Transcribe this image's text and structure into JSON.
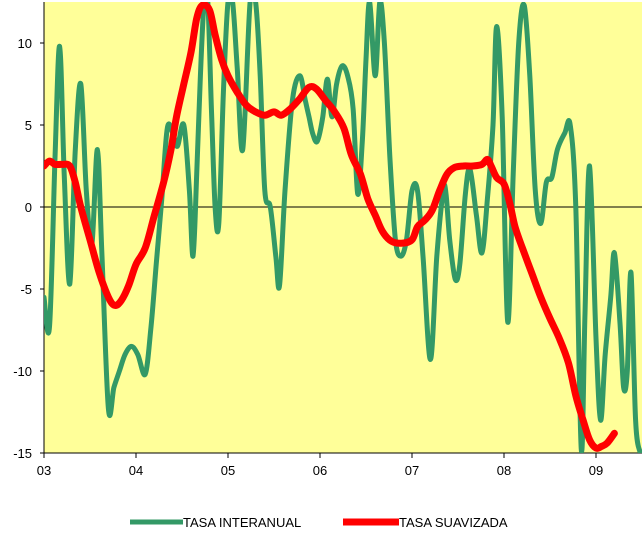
{
  "chart_data": {
    "type": "line",
    "title": "",
    "xlabel": "",
    "ylabel": "",
    "xlim": [
      2003.0,
      2009.5
    ],
    "ylim": [
      -15,
      12.5
    ],
    "x_tick_values": [
      2003,
      2004,
      2005,
      2006,
      2007,
      2008,
      2009
    ],
    "x_tick_labels": [
      "03",
      "04",
      "05",
      "06",
      "07",
      "08",
      "09"
    ],
    "y_tick_values": [
      -15,
      -10,
      -5,
      0,
      5,
      10
    ],
    "y_tick_labels": [
      "-15",
      "-10",
      "-5",
      "0",
      "5",
      "10"
    ],
    "plot_background": "#ffff99",
    "zero_line": true,
    "grid": false,
    "legend_position": "bottom",
    "series": [
      {
        "name": "TASA INTERANUAL",
        "color": "#339966",
        "points": [
          [
            2003.0,
            -5.5
          ],
          [
            2003.06,
            -7.3
          ],
          [
            2003.12,
            3.0
          ],
          [
            2003.17,
            9.8
          ],
          [
            2003.22,
            2.0
          ],
          [
            2003.28,
            -4.7
          ],
          [
            2003.34,
            3.5
          ],
          [
            2003.4,
            7.5
          ],
          [
            2003.46,
            1.0
          ],
          [
            2003.52,
            -2.3
          ],
          [
            2003.58,
            3.5
          ],
          [
            2003.63,
            -3.0
          ],
          [
            2003.7,
            -12.3
          ],
          [
            2003.76,
            -11.0
          ],
          [
            2003.82,
            -10.0
          ],
          [
            2003.88,
            -9.0
          ],
          [
            2003.95,
            -8.5
          ],
          [
            2004.02,
            -9.0
          ],
          [
            2004.1,
            -10.2
          ],
          [
            2004.16,
            -7.5
          ],
          [
            2004.22,
            -3.5
          ],
          [
            2004.28,
            0.5
          ],
          [
            2004.34,
            4.8
          ],
          [
            2004.4,
            4.5
          ],
          [
            2004.45,
            3.7
          ],
          [
            2004.52,
            5.0
          ],
          [
            2004.58,
            1.0
          ],
          [
            2004.62,
            -3.0
          ],
          [
            2004.66,
            2.0
          ],
          [
            2004.7,
            8.0
          ],
          [
            2004.74,
            12.5
          ],
          [
            2004.78,
            12.5
          ],
          [
            2004.82,
            6.0
          ],
          [
            2004.86,
            0.0
          ],
          [
            2004.9,
            -1.0
          ],
          [
            2004.95,
            7.0
          ],
          [
            2005.0,
            12.5
          ],
          [
            2005.05,
            12.5
          ],
          [
            2005.1,
            8.5
          ],
          [
            2005.16,
            3.5
          ],
          [
            2005.24,
            12.5
          ],
          [
            2005.3,
            12.5
          ],
          [
            2005.35,
            8.0
          ],
          [
            2005.4,
            1.0
          ],
          [
            2005.46,
            0.0
          ],
          [
            2005.52,
            -3.0
          ],
          [
            2005.56,
            -4.8
          ],
          [
            2005.62,
            1.0
          ],
          [
            2005.7,
            6.5
          ],
          [
            2005.78,
            8.0
          ],
          [
            2005.84,
            6.5
          ],
          [
            2005.88,
            5.5
          ],
          [
            2005.92,
            4.5
          ],
          [
            2005.97,
            4.0
          ],
          [
            2006.03,
            5.5
          ],
          [
            2006.08,
            7.8
          ],
          [
            2006.13,
            5.5
          ],
          [
            2006.18,
            7.5
          ],
          [
            2006.24,
            8.6
          ],
          [
            2006.3,
            8.0
          ],
          [
            2006.36,
            6.0
          ],
          [
            2006.41,
            0.8
          ],
          [
            2006.46,
            4.0
          ],
          [
            2006.5,
            9.0
          ],
          [
            2006.54,
            12.5
          ],
          [
            2006.6,
            8.0
          ],
          [
            2006.65,
            12.5
          ],
          [
            2006.7,
            10.0
          ],
          [
            2006.76,
            3.0
          ],
          [
            2006.82,
            -2.0
          ],
          [
            2006.88,
            -3.0
          ],
          [
            2006.94,
            -2.0
          ],
          [
            2007.0,
            1.0
          ],
          [
            2007.06,
            1.0
          ],
          [
            2007.12,
            -3.0
          ],
          [
            2007.2,
            -9.3
          ],
          [
            2007.27,
            -3.0
          ],
          [
            2007.34,
            1.0
          ],
          [
            2007.37,
            0.8
          ],
          [
            2007.41,
            -2.0
          ],
          [
            2007.47,
            -4.4
          ],
          [
            2007.52,
            -3.5
          ],
          [
            2007.58,
            0.8
          ],
          [
            2007.63,
            2.3
          ],
          [
            2007.7,
            -0.5
          ],
          [
            2007.76,
            -2.8
          ],
          [
            2007.82,
            0.5
          ],
          [
            2007.88,
            5.0
          ],
          [
            2007.92,
            11.0
          ],
          [
            2007.98,
            5.5
          ],
          [
            2008.04,
            -7.0
          ],
          [
            2008.1,
            2.0
          ],
          [
            2008.16,
            10.0
          ],
          [
            2008.22,
            12.3
          ],
          [
            2008.28,
            8.0
          ],
          [
            2008.34,
            1.0
          ],
          [
            2008.4,
            -1.0
          ],
          [
            2008.46,
            1.5
          ],
          [
            2008.52,
            1.8
          ],
          [
            2008.58,
            3.5
          ],
          [
            2008.66,
            4.5
          ],
          [
            2008.72,
            5.0
          ],
          [
            2008.78,
            0.0
          ],
          [
            2008.84,
            -14.8
          ],
          [
            2008.88,
            -6.5
          ],
          [
            2008.93,
            2.5
          ],
          [
            2009.0,
            -8.0
          ],
          [
            2009.05,
            -13.0
          ],
          [
            2009.1,
            -9.0
          ],
          [
            2009.16,
            -5.5
          ],
          [
            2009.2,
            -2.8
          ],
          [
            2009.26,
            -7.0
          ],
          [
            2009.3,
            -11.0
          ],
          [
            2009.34,
            -10.0
          ],
          [
            2009.38,
            -4.0
          ],
          [
            2009.43,
            -13.0
          ],
          [
            2009.48,
            -15.0
          ]
        ]
      },
      {
        "name": "TASA SUAVIZADA",
        "color": "#ff0000",
        "points": [
          [
            2003.0,
            2.5
          ],
          [
            2003.06,
            2.8
          ],
          [
            2003.12,
            2.6
          ],
          [
            2003.2,
            2.6
          ],
          [
            2003.28,
            2.5
          ],
          [
            2003.34,
            1.5
          ],
          [
            2003.4,
            0.0
          ],
          [
            2003.5,
            -2.0
          ],
          [
            2003.6,
            -4.0
          ],
          [
            2003.7,
            -5.5
          ],
          [
            2003.77,
            -6.0
          ],
          [
            2003.84,
            -5.7
          ],
          [
            2003.92,
            -4.8
          ],
          [
            2004.0,
            -3.5
          ],
          [
            2004.1,
            -2.5
          ],
          [
            2004.2,
            -0.5
          ],
          [
            2004.3,
            1.5
          ],
          [
            2004.38,
            3.5
          ],
          [
            2004.44,
            5.5
          ],
          [
            2004.52,
            7.5
          ],
          [
            2004.6,
            9.5
          ],
          [
            2004.66,
            11.5
          ],
          [
            2004.72,
            12.3
          ],
          [
            2004.8,
            12.0
          ],
          [
            2004.86,
            10.5
          ],
          [
            2004.93,
            9.0
          ],
          [
            2005.0,
            8.0
          ],
          [
            2005.1,
            7.0
          ],
          [
            2005.2,
            6.2
          ],
          [
            2005.3,
            5.8
          ],
          [
            2005.4,
            5.6
          ],
          [
            2005.5,
            5.8
          ],
          [
            2005.58,
            5.6
          ],
          [
            2005.68,
            6.0
          ],
          [
            2005.78,
            6.6
          ],
          [
            2005.88,
            7.3
          ],
          [
            2005.96,
            7.2
          ],
          [
            2006.06,
            6.5
          ],
          [
            2006.16,
            5.8
          ],
          [
            2006.26,
            4.8
          ],
          [
            2006.34,
            3.2
          ],
          [
            2006.44,
            2.0
          ],
          [
            2006.52,
            0.5
          ],
          [
            2006.6,
            -0.5
          ],
          [
            2006.68,
            -1.5
          ],
          [
            2006.78,
            -2.1
          ],
          [
            2006.9,
            -2.2
          ],
          [
            2007.0,
            -2.0
          ],
          [
            2007.06,
            -1.2
          ],
          [
            2007.14,
            -0.8
          ],
          [
            2007.22,
            -0.2
          ],
          [
            2007.3,
            1.0
          ],
          [
            2007.38,
            2.0
          ],
          [
            2007.46,
            2.4
          ],
          [
            2007.56,
            2.5
          ],
          [
            2007.66,
            2.5
          ],
          [
            2007.76,
            2.6
          ],
          [
            2007.82,
            2.9
          ],
          [
            2007.86,
            2.5
          ],
          [
            2007.92,
            1.8
          ],
          [
            2008.0,
            1.4
          ],
          [
            2008.06,
            0.3
          ],
          [
            2008.12,
            -1.2
          ],
          [
            2008.2,
            -2.5
          ],
          [
            2008.3,
            -4.0
          ],
          [
            2008.4,
            -5.5
          ],
          [
            2008.5,
            -6.8
          ],
          [
            2008.6,
            -8.0
          ],
          [
            2008.7,
            -9.5
          ],
          [
            2008.78,
            -11.5
          ],
          [
            2008.86,
            -13.0
          ],
          [
            2008.93,
            -14.2
          ],
          [
            2009.0,
            -14.7
          ],
          [
            2009.06,
            -14.6
          ],
          [
            2009.12,
            -14.4
          ],
          [
            2009.2,
            -13.8
          ]
        ]
      }
    ]
  }
}
